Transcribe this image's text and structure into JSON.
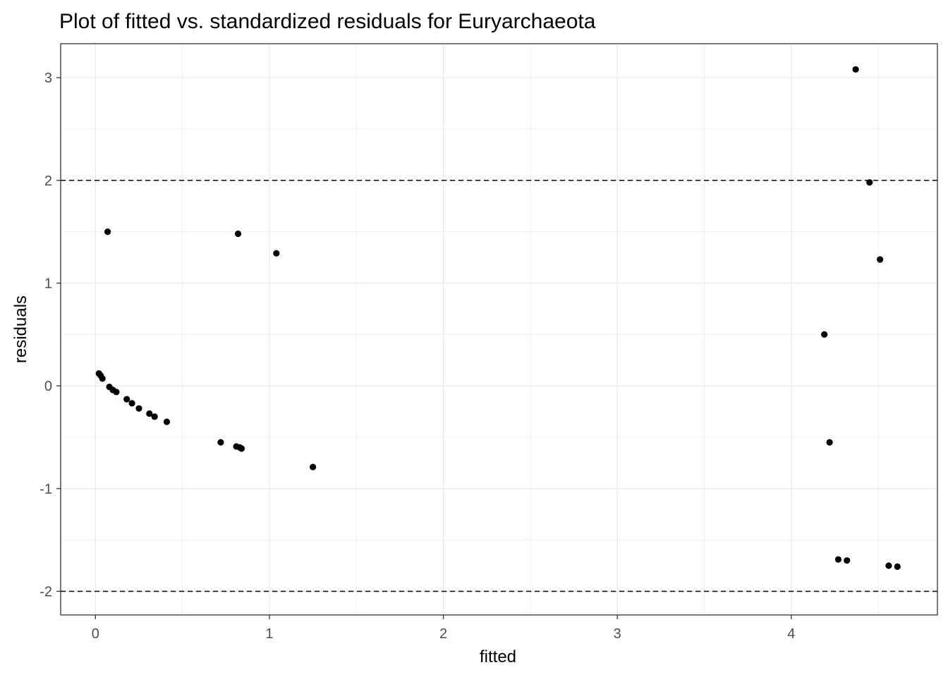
{
  "chart_data": {
    "type": "scatter",
    "title": "Plot of fitted vs. standardized residuals for Euryarchaeota",
    "xlabel": "fitted",
    "ylabel": "residuals",
    "xlim": [
      -0.2,
      4.84
    ],
    "ylim": [
      -2.23,
      3.33
    ],
    "x_ticks": [
      0,
      1,
      2,
      3,
      4
    ],
    "x_tick_labels": [
      "0",
      "1",
      "2",
      "3",
      "4"
    ],
    "y_ticks": [
      -2,
      -1,
      0,
      1,
      2,
      3
    ],
    "y_tick_labels": [
      "-2",
      "-1",
      "0",
      "1",
      "2",
      "3"
    ],
    "reference_lines": [
      2,
      -2
    ],
    "grid": true,
    "colors": {
      "point": "#000000",
      "grid": "#ebebeb",
      "panel_border": "#333333",
      "reference_line": "#000000"
    },
    "points": [
      {
        "x": 0.02,
        "y": 0.12
      },
      {
        "x": 0.03,
        "y": 0.1
      },
      {
        "x": 0.04,
        "y": 0.07
      },
      {
        "x": 0.07,
        "y": 1.5
      },
      {
        "x": 0.08,
        "y": -0.01
      },
      {
        "x": 0.1,
        "y": -0.04
      },
      {
        "x": 0.12,
        "y": -0.06
      },
      {
        "x": 0.18,
        "y": -0.13
      },
      {
        "x": 0.21,
        "y": -0.17
      },
      {
        "x": 0.25,
        "y": -0.22
      },
      {
        "x": 0.31,
        "y": -0.27
      },
      {
        "x": 0.34,
        "y": -0.3
      },
      {
        "x": 0.41,
        "y": -0.35
      },
      {
        "x": 0.72,
        "y": -0.55
      },
      {
        "x": 0.81,
        "y": -0.59
      },
      {
        "x": 0.82,
        "y": 1.48
      },
      {
        "x": 0.83,
        "y": -0.6
      },
      {
        "x": 0.84,
        "y": -0.61
      },
      {
        "x": 1.04,
        "y": 1.29
      },
      {
        "x": 1.25,
        "y": -0.79
      },
      {
        "x": 4.19,
        "y": 0.5
      },
      {
        "x": 4.22,
        "y": -0.55
      },
      {
        "x": 4.27,
        "y": -1.69
      },
      {
        "x": 4.32,
        "y": -1.7
      },
      {
        "x": 4.37,
        "y": 3.08
      },
      {
        "x": 4.45,
        "y": 1.98
      },
      {
        "x": 4.51,
        "y": 1.23
      },
      {
        "x": 4.56,
        "y": -1.75
      },
      {
        "x": 4.61,
        "y": -1.76
      }
    ]
  }
}
